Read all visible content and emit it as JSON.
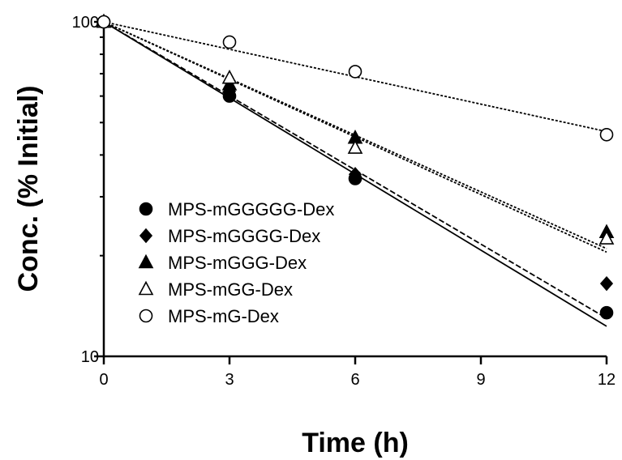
{
  "chart_data": {
    "type": "scatter",
    "title": "",
    "xlabel": "Time (h)",
    "ylabel": "Conc. (% Initial)",
    "xlim": [
      0,
      12
    ],
    "ylim": [
      10,
      100
    ],
    "yscale": "log",
    "x_ticks": [
      0,
      3,
      6,
      9,
      12
    ],
    "x_tick_labels": [
      "0",
      "3",
      "6",
      "9",
      "12"
    ],
    "y_ticks": [
      10,
      100
    ],
    "y_tick_labels": [
      "10",
      "100"
    ],
    "grid": false,
    "legend_position": "bottom-left",
    "series": [
      {
        "name": "MPS-mGGGGG-Dex",
        "marker": "circle-filled",
        "line": "solid",
        "x": [
          0,
          3,
          6,
          12
        ],
        "y": [
          100,
          60,
          34,
          13.5
        ],
        "fit": [
          100,
          12.3
        ]
      },
      {
        "name": "MPS-mGGGG-Dex",
        "marker": "diamond-filled",
        "line": "dashed",
        "x": [
          0,
          3,
          6,
          12
        ],
        "y": [
          100,
          62,
          35,
          16.5
        ],
        "fit": [
          100,
          13
        ]
      },
      {
        "name": "MPS-mGGG-Dex",
        "marker": "triangle-filled",
        "line": "dotted",
        "x": [
          0,
          3,
          6,
          12
        ],
        "y": [
          100,
          65,
          45,
          23.5
        ],
        "fit": [
          100,
          21
        ]
      },
      {
        "name": "MPS-mGG-Dex",
        "marker": "triangle-open",
        "line": "dotted",
        "x": [
          0,
          3,
          6,
          12
        ],
        "y": [
          100,
          68,
          42,
          22.5
        ],
        "fit": [
          100,
          20.5
        ]
      },
      {
        "name": "MPS-mG-Dex",
        "marker": "circle-open",
        "line": "dotted",
        "x": [
          0,
          3,
          6,
          12
        ],
        "y": [
          100,
          87,
          71,
          46
        ],
        "fit": [
          100,
          47
        ]
      }
    ]
  }
}
